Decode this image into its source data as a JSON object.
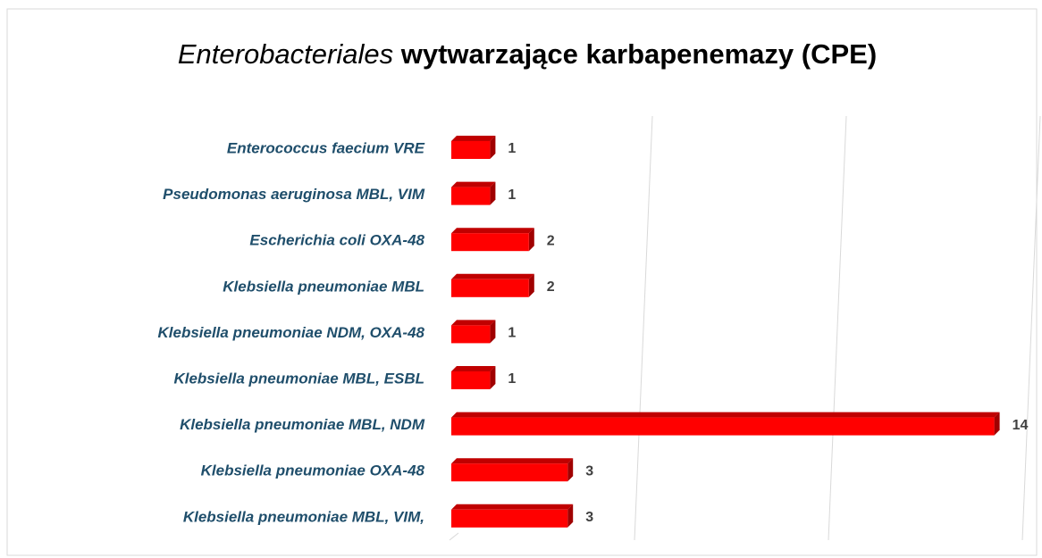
{
  "chart_data": {
    "type": "bar",
    "orientation": "horizontal",
    "title": {
      "emphasis": "Enterobacteriales",
      "text": "wytwarzające karbapenemazy (CPE)"
    },
    "categories": [
      "Enterococcus faecium VRE",
      "Pseudomonas aeruginosa  MBL, VIM",
      "Escherichia coli OXA-48",
      "Klebsiella pneumoniae MBL",
      "Klebsiella pneumoniae NDM, OXA-48",
      "Klebsiella pneumoniae MBL, ESBL",
      "Klebsiella pneumoniae MBL, NDM",
      "Klebsiella pneumoniae OXA-48",
      "Klebsiella pneumoniae MBL, VIM,"
    ],
    "values": [
      1,
      1,
      2,
      2,
      1,
      1,
      14,
      3,
      3
    ],
    "color": "#ff0000",
    "xlim": [
      0,
      15
    ],
    "xticks": [
      0,
      5,
      10,
      15
    ],
    "grid": true
  }
}
